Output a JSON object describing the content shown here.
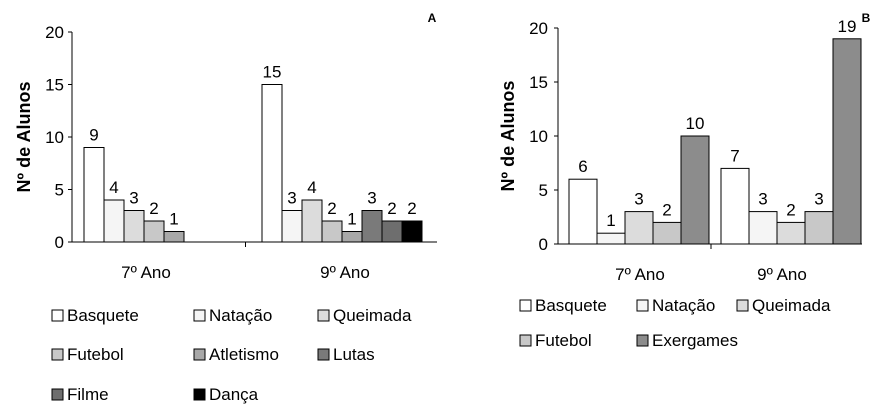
{
  "chart_data": [
    {
      "type": "bar",
      "panel_label": "A",
      "ylabel": "Nº de Alunos",
      "ylim": [
        0,
        20
      ],
      "yticks": [
        0,
        5,
        10,
        15,
        20
      ],
      "categories": [
        "7º Ano",
        "9º Ano"
      ],
      "series": [
        {
          "name": "Basquete",
          "color": "#ffffff",
          "values": [
            9,
            15
          ]
        },
        {
          "name": "Natação",
          "color": "#f5f5f5",
          "values": [
            4,
            3
          ]
        },
        {
          "name": "Queimada",
          "color": "#dcdcdc",
          "values": [
            3,
            4
          ]
        },
        {
          "name": "Futebol",
          "color": "#c8c8c8",
          "values": [
            2,
            2
          ]
        },
        {
          "name": "Atletismo",
          "color": "#a8a8a8",
          "values": [
            1,
            1
          ]
        },
        {
          "name": "Lutas",
          "color": "#7a7a7a",
          "values": [
            null,
            3
          ]
        },
        {
          "name": "Filme",
          "color": "#6e6e6e",
          "values": [
            null,
            2
          ]
        },
        {
          "name": "Dança",
          "color": "#000000",
          "values": [
            null,
            2
          ]
        }
      ],
      "legend_position": "bottom",
      "grid": false
    },
    {
      "type": "bar",
      "panel_label": "B",
      "ylabel": "Nº de Alunos",
      "ylim": [
        0,
        20
      ],
      "yticks": [
        0,
        5,
        10,
        15,
        20
      ],
      "categories": [
        "7º Ano",
        "9º Ano"
      ],
      "series": [
        {
          "name": "Basquete",
          "color": "#ffffff",
          "values": [
            6,
            7
          ]
        },
        {
          "name": "Natação",
          "color": "#f5f5f5",
          "values": [
            1,
            3
          ]
        },
        {
          "name": "Queimada",
          "color": "#dcdcdc",
          "values": [
            3,
            2
          ]
        },
        {
          "name": "Futebol",
          "color": "#c8c8c8",
          "values": [
            2,
            3
          ]
        },
        {
          "name": "Exergames",
          "color": "#8c8c8c",
          "values": [
            10,
            19
          ]
        }
      ],
      "legend_position": "bottom",
      "grid": false
    }
  ]
}
